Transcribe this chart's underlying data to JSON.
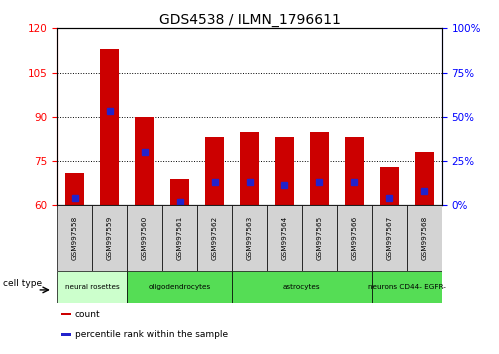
{
  "title": "GDS4538 / ILMN_1796611",
  "samples": [
    "GSM997558",
    "GSM997559",
    "GSM997560",
    "GSM997561",
    "GSM997562",
    "GSM997563",
    "GSM997564",
    "GSM997565",
    "GSM997566",
    "GSM997567",
    "GSM997568"
  ],
  "red_values": [
    71,
    113,
    90,
    69,
    83,
    85,
    83,
    85,
    83,
    73,
    78
  ],
  "blue_values": [
    62.5,
    92,
    78,
    61,
    68,
    68,
    67,
    68,
    68,
    62.5,
    65
  ],
  "cell_types": [
    {
      "label": "neural rosettes",
      "start": 0,
      "end": 2
    },
    {
      "label": "oligodendrocytes",
      "start": 2,
      "end": 5
    },
    {
      "label": "astrocytes",
      "start": 5,
      "end": 9
    },
    {
      "label": "neurons CD44- EGFR-",
      "start": 9,
      "end": 11
    }
  ],
  "ct_colors": [
    "#ccffcc",
    "#55dd55",
    "#55dd55",
    "#55dd55"
  ],
  "ylim_left": [
    60,
    120
  ],
  "ylim_right": [
    0,
    100
  ],
  "yticks_left": [
    60,
    75,
    90,
    105,
    120
  ],
  "yticks_right": [
    0,
    25,
    50,
    75,
    100
  ],
  "ytick_labels_right": [
    "0%",
    "25%",
    "50%",
    "75%",
    "100%"
  ],
  "bar_color": "#cc0000",
  "dot_color": "#2222cc",
  "bar_width": 0.55,
  "legend_items": [
    {
      "label": "count",
      "color": "#cc0000"
    },
    {
      "label": "percentile rank within the sample",
      "color": "#2222cc"
    }
  ]
}
